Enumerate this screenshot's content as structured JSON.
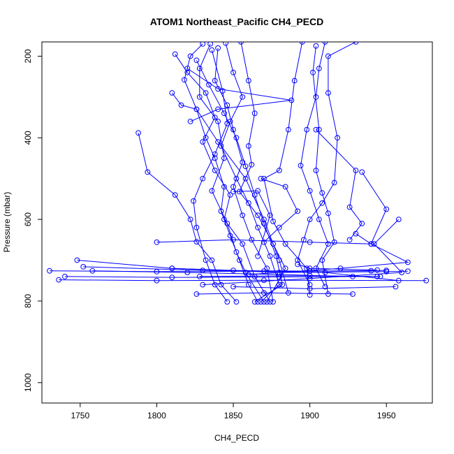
{
  "chart_data": {
    "type": "line",
    "title": "ATOM1 Northeast_Pacific CH4_PECD",
    "xlabel": "CH4_PECD",
    "ylabel": "Pressure (mbar)",
    "xlim": [
      1725,
      1980
    ],
    "ylim": [
      1050,
      165
    ],
    "y_reversed": true,
    "grid": false,
    "x_ticks": [
      "1750",
      "1800",
      "1850",
      "1900",
      "1950"
    ],
    "y_ticks": [
      "200",
      "400",
      "600",
      "800",
      "1000"
    ],
    "series_color": "#0000ff",
    "profiles": [
      [
        [
          1830,
          170
        ],
        [
          1822,
          200
        ],
        [
          1818,
          258
        ],
        [
          1826,
          330
        ],
        [
          1832,
          400
        ],
        [
          1838,
          450
        ],
        [
          1844,
          520
        ],
        [
          1842,
          580
        ],
        [
          1848,
          640
        ],
        [
          1854,
          700
        ],
        [
          1860,
          760
        ],
        [
          1866,
          802
        ]
      ],
      [
        [
          1835,
          170
        ],
        [
          1828,
          230
        ],
        [
          1828,
          300
        ],
        [
          1840,
          360
        ],
        [
          1844,
          450
        ],
        [
          1836,
          530
        ],
        [
          1846,
          610
        ],
        [
          1852,
          680
        ],
        [
          1858,
          730
        ],
        [
          1870,
          802
        ]
      ],
      [
        [
          1840,
          180
        ],
        [
          1838,
          260
        ],
        [
          1846,
          320
        ],
        [
          1850,
          380
        ],
        [
          1856,
          460
        ],
        [
          1850,
          520
        ],
        [
          1856,
          590
        ],
        [
          1862,
          650
        ],
        [
          1872,
          720
        ],
        [
          1876,
          802
        ]
      ],
      [
        [
          1812,
          195
        ],
        [
          1820,
          240
        ],
        [
          1832,
          290
        ],
        [
          1838,
          350
        ],
        [
          1830,
          410
        ],
        [
          1838,
          480
        ],
        [
          1848,
          540
        ],
        [
          1844,
          600
        ],
        [
          1856,
          660
        ],
        [
          1864,
          740
        ],
        [
          1874,
          802
        ]
      ],
      [
        [
          1845,
          168
        ],
        [
          1850,
          240
        ],
        [
          1856,
          300
        ],
        [
          1848,
          360
        ],
        [
          1842,
          420
        ],
        [
          1852,
          500
        ],
        [
          1860,
          560
        ],
        [
          1866,
          620
        ],
        [
          1874,
          690
        ],
        [
          1880,
          760
        ],
        [
          1868,
          802
        ]
      ],
      [
        [
          1826,
          210
        ],
        [
          1834,
          270
        ],
        [
          1844,
          340
        ],
        [
          1852,
          400
        ],
        [
          1858,
          470
        ],
        [
          1864,
          540
        ],
        [
          1870,
          610
        ],
        [
          1878,
          690
        ],
        [
          1882,
          760
        ],
        [
          1864,
          802
        ]
      ],
      [
        [
          1855,
          165
        ],
        [
          1860,
          260
        ],
        [
          1864,
          340
        ],
        [
          1860,
          420
        ],
        [
          1862,
          466
        ],
        [
          1854,
          532
        ],
        [
          1866,
          590
        ],
        [
          1876,
          660
        ],
        [
          1884,
          720
        ],
        [
          1872,
          802
        ]
      ],
      [
        [
          1836,
          185
        ],
        [
          1843,
          285
        ],
        [
          1846,
          365
        ],
        [
          1838,
          440
        ],
        [
          1830,
          500
        ],
        [
          1824,
          555
        ],
        [
          1826,
          620
        ],
        [
          1832,
          700
        ],
        [
          1838,
          760
        ],
        [
          1846,
          802
        ]
      ],
      [
        [
          1910,
          165
        ],
        [
          1906,
          230
        ],
        [
          1904,
          300
        ],
        [
          1898,
          380
        ],
        [
          1894,
          468
        ],
        [
          1900,
          530
        ],
        [
          1906,
          600
        ],
        [
          1912,
          660
        ],
        [
          1904,
          720
        ],
        [
          1910,
          765
        ]
      ],
      [
        [
          1904,
          175
        ],
        [
          1902,
          240
        ],
        [
          1906,
          380
        ],
        [
          1904,
          480
        ],
        [
          1908,
          535
        ],
        [
          1912,
          585
        ],
        [
          1916,
          656
        ],
        [
          1908,
          700
        ],
        [
          1912,
          783
        ]
      ],
      [
        [
          1895,
          165
        ],
        [
          1890,
          260
        ],
        [
          1886,
          380
        ],
        [
          1880,
          480
        ],
        [
          1870,
          500
        ],
        [
          1876,
          605
        ],
        [
          1884,
          660
        ],
        [
          1898,
          720
        ],
        [
          1900,
          785
        ]
      ],
      [
        [
          1930,
          165
        ],
        [
          1912,
          200
        ],
        [
          1912,
          290
        ],
        [
          1918,
          400
        ],
        [
          1916,
          510
        ],
        [
          1908,
          560
        ],
        [
          1900,
          600
        ],
        [
          1896,
          650
        ],
        [
          1892,
          700
        ],
        [
          1900,
          760
        ]
      ],
      [
        [
          1788,
          388
        ],
        [
          1794,
          484
        ],
        [
          1812,
          540
        ],
        [
          1822,
          600
        ],
        [
          1826,
          655
        ],
        [
          1836,
          700
        ],
        [
          1842,
          760
        ],
        [
          1852,
          802
        ]
      ],
      [
        [
          1810,
          290
        ],
        [
          1816,
          320
        ],
        [
          1826,
          330
        ],
        [
          1840,
          410
        ],
        [
          1858,
          500
        ],
        [
          1870,
          600
        ],
        [
          1880,
          700
        ],
        [
          1886,
          780
        ]
      ],
      [
        [
          1934,
          484
        ],
        [
          1950,
          575
        ],
        [
          1940,
          660
        ],
        [
          1964,
          705
        ],
        [
          1920,
          720
        ],
        [
          1860,
          735
        ]
      ],
      [
        [
          1958,
          600
        ],
        [
          1942,
          660
        ],
        [
          1960,
          730
        ],
        [
          1900,
          745
        ],
        [
          1830,
          760
        ]
      ],
      [
        [
          1930,
          635
        ],
        [
          1940,
          660
        ],
        [
          1900,
          656
        ],
        [
          1850,
          650
        ],
        [
          1800,
          656
        ]
      ],
      [
        [
          1820,
          230
        ],
        [
          1840,
          280
        ],
        [
          1888,
          308
        ],
        [
          1840,
          330
        ],
        [
          1822,
          360
        ]
      ],
      [
        [
          1904,
          380
        ],
        [
          1930,
          480
        ],
        [
          1926,
          570
        ],
        [
          1934,
          610
        ],
        [
          1926,
          650
        ]
      ],
      [
        [
          1868,
          500
        ],
        [
          1884,
          520
        ],
        [
          1892,
          580
        ],
        [
          1880,
          620
        ],
        [
          1870,
          656
        ]
      ],
      [
        [
          1748,
          700
        ],
        [
          1810,
          720
        ],
        [
          1880,
          730
        ],
        [
          1950,
          728
        ],
        [
          1964,
          727
        ]
      ],
      [
        [
          1730,
          726
        ],
        [
          1800,
          728
        ],
        [
          1870,
          727
        ],
        [
          1940,
          726
        ]
      ],
      [
        [
          1740,
          740
        ],
        [
          1810,
          742
        ],
        [
          1880,
          741
        ],
        [
          1944,
          740
        ]
      ],
      [
        [
          1736,
          748
        ],
        [
          1800,
          750
        ],
        [
          1870,
          749
        ],
        [
          1976,
          750
        ]
      ],
      [
        [
          1752,
          716
        ],
        [
          1830,
          725
        ],
        [
          1900,
          727
        ],
        [
          1950,
          725
        ]
      ],
      [
        [
          1758,
          726
        ],
        [
          1820,
          730
        ],
        [
          1880,
          735
        ],
        [
          1928,
          740
        ]
      ],
      [
        [
          1826,
          783
        ],
        [
          1870,
          780
        ],
        [
          1928,
          783
        ]
      ],
      [
        [
          1850,
          765
        ],
        [
          1900,
          770
        ],
        [
          1956,
          765
        ]
      ],
      [
        [
          1828,
          740
        ],
        [
          1900,
          738
        ],
        [
          1946,
          740
        ]
      ],
      [
        [
          1850,
          532
        ],
        [
          1866,
          530
        ],
        [
          1874,
          590
        ],
        [
          1866,
          690
        ]
      ],
      [
        [
          1892,
          710
        ],
        [
          1900,
          720
        ],
        [
          1944,
          724
        ]
      ],
      [
        [
          1810,
          720
        ],
        [
          1850,
          725
        ],
        [
          1910,
          730
        ],
        [
          1958,
          750
        ]
      ]
    ]
  }
}
